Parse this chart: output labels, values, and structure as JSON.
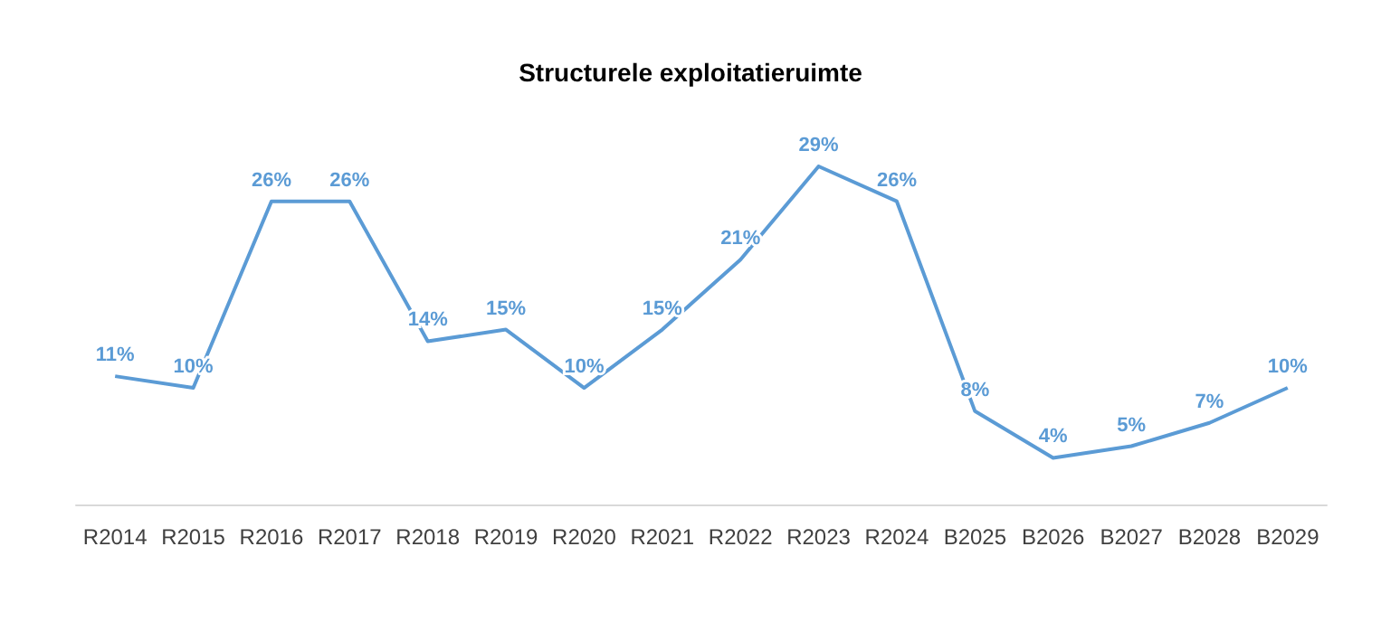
{
  "chart_data": {
    "type": "line",
    "title": "Structurele exploitatieruimte",
    "marker": "none",
    "categories": [
      "R2014",
      "R2015",
      "R2016",
      "R2017",
      "R2018",
      "R2019",
      "R2020",
      "R2021",
      "R2022",
      "R2023",
      "R2024",
      "B2025",
      "B2026",
      "B2027",
      "B2028",
      "B2029"
    ],
    "series": [
      {
        "color": "#5b9bd5",
        "values": [
          11,
          10,
          26,
          26,
          14,
          15,
          10,
          15,
          21,
          29,
          26,
          8,
          4,
          5,
          7,
          10
        ],
        "value_labels": [
          "11%",
          "10%",
          "26%",
          "26%",
          "14%",
          "15%",
          "10%",
          "15%",
          "21%",
          "29%",
          "26%",
          "8%",
          "4%",
          "5%",
          "7%",
          "10%"
        ]
      }
    ],
    "grid": false
  }
}
